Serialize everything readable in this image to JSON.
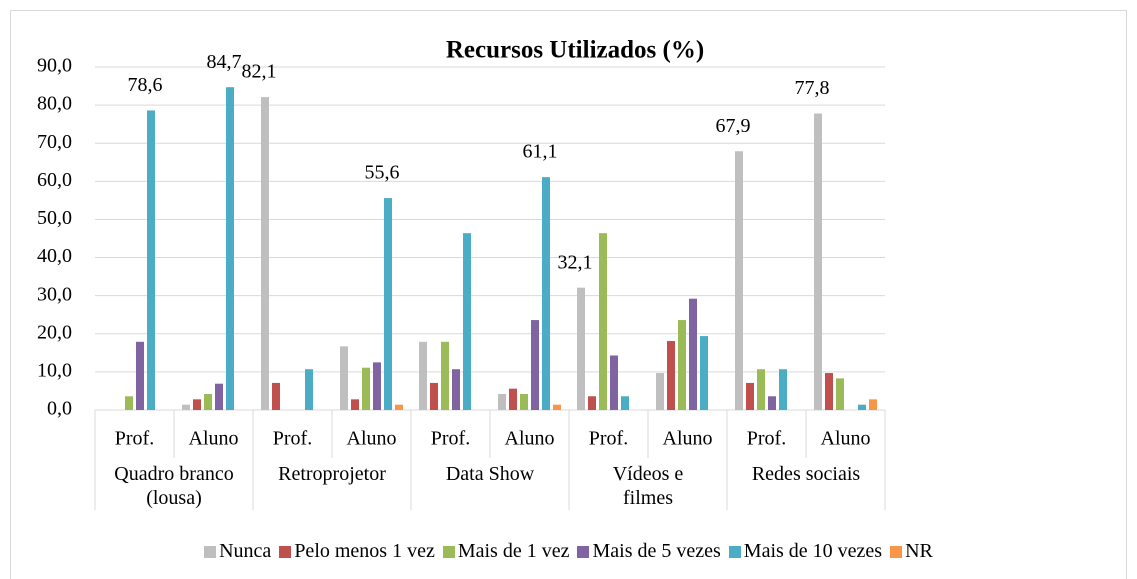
{
  "chart_data": {
    "type": "bar",
    "title": "Recursos Utilizados (%)",
    "categories": [
      "Prof.",
      "Aluno",
      "Prof.",
      "Aluno",
      "Prof.",
      "Aluno",
      "Prof.",
      "Aluno",
      "Prof.",
      "Aluno"
    ],
    "groups": [
      "Quadro branco (lousa)",
      "Retroprojetor",
      "Data Show",
      "Vídeos e filmes",
      "Redes sociais"
    ],
    "series": [
      {
        "name": "Nunca",
        "color": "#bfbfbf",
        "values": [
          0,
          1.4,
          82.1,
          16.7,
          17.9,
          4.2,
          32.1,
          9.7,
          67.9,
          77.8
        ],
        "value_labels": [
          null,
          null,
          "82,1",
          null,
          null,
          null,
          "32,1",
          null,
          "67,9",
          "77,8"
        ]
      },
      {
        "name": "Pelo menos 1 vez",
        "color": "#c0504d",
        "values": [
          0,
          2.8,
          7.1,
          2.8,
          7.1,
          5.6,
          3.6,
          18.1,
          7.1,
          9.7
        ]
      },
      {
        "name": "Mais de 1 vez",
        "color": "#9bbb59",
        "values": [
          3.6,
          4.2,
          0,
          11.1,
          17.9,
          4.2,
          46.4,
          23.6,
          10.7,
          8.3
        ]
      },
      {
        "name": "Mais de 5 vezes",
        "color": "#8064a2",
        "values": [
          17.9,
          6.9,
          0,
          12.5,
          10.7,
          23.6,
          14.3,
          29.2,
          3.6,
          0
        ]
      },
      {
        "name": "Mais de 10 vezes",
        "color": "#4bacc6",
        "values": [
          78.6,
          84.7,
          10.7,
          55.6,
          46.4,
          61.1,
          3.6,
          19.4,
          10.7,
          1.4
        ],
        "value_labels": [
          "78,6",
          "84,7",
          null,
          "55,6",
          null,
          "61,1",
          null,
          null,
          null,
          null
        ]
      },
      {
        "name": "NR",
        "color": "#f79646",
        "values": [
          0,
          0,
          0,
          1.4,
          0,
          1.4,
          0,
          0,
          0,
          2.8
        ]
      }
    ],
    "ylim": [
      0,
      90
    ],
    "yticks": [
      {
        "value": 0,
        "label": "0,0"
      },
      {
        "value": 10,
        "label": "10,0"
      },
      {
        "value": 20,
        "label": "20,0"
      },
      {
        "value": 30,
        "label": "30,0"
      },
      {
        "value": 40,
        "label": "40,0"
      },
      {
        "value": 50,
        "label": "50,0"
      },
      {
        "value": 60,
        "label": "60,0"
      },
      {
        "value": 70,
        "label": "70,0"
      },
      {
        "value": 80,
        "label": "80,0"
      },
      {
        "value": 90,
        "label": "90,0"
      }
    ],
    "grid": true
  }
}
